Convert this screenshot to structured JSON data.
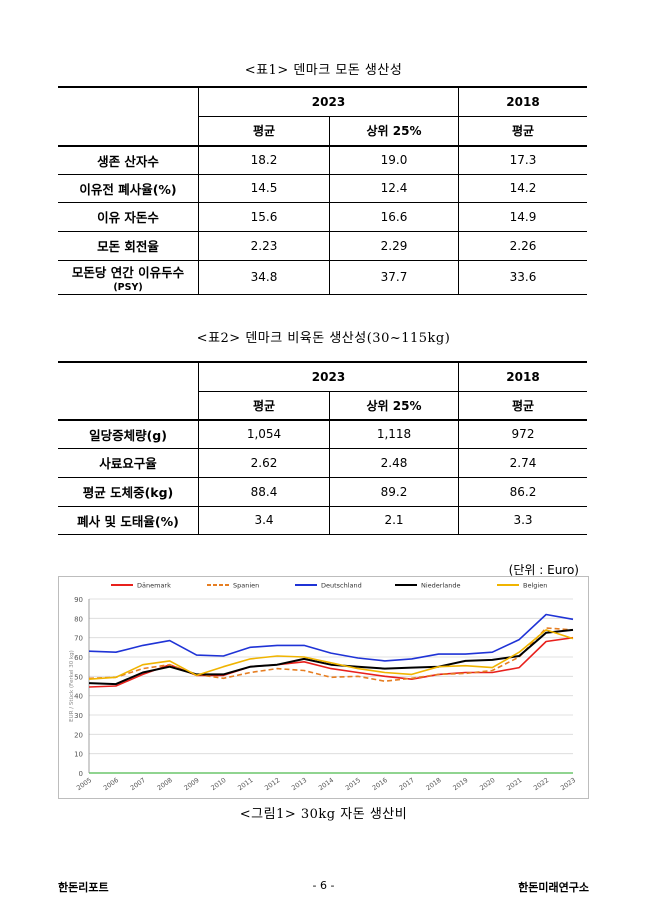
{
  "table1": {
    "caption": "<표1> 덴마크 모돈 생산성",
    "year_a": "2023",
    "year_b": "2018",
    "col_avg": "평균",
    "col_top": "상위 25%",
    "col_avg_b": "평균",
    "rows": [
      {
        "label": "생존 산자수",
        "sub": "",
        "avg": "18.2",
        "top": "19.0",
        "prev": "17.3"
      },
      {
        "label": "이유전 폐사율(%)",
        "sub": "",
        "avg": "14.5",
        "top": "12.4",
        "prev": "14.2"
      },
      {
        "label": "이유 자돈수",
        "sub": "",
        "avg": "15.6",
        "top": "16.6",
        "prev": "14.9"
      },
      {
        "label": "모돈 회전율",
        "sub": "",
        "avg": "2.23",
        "top": "2.29",
        "prev": "2.26"
      },
      {
        "label": "모돈당 연간 이유두수",
        "sub": "(PSY)",
        "avg": "34.8",
        "top": "37.7",
        "prev": "33.6"
      }
    ]
  },
  "table2": {
    "caption": "<표2> 덴마크 비육돈 생산성(30~115kg)",
    "year_a": "2023",
    "year_b": "2018",
    "col_avg": "평균",
    "col_top": "상위 25%",
    "col_avg_b": "평균",
    "rows": [
      {
        "label": "일당증체량(g)",
        "avg": "1,054",
        "top": "1,118",
        "prev": "972"
      },
      {
        "label": "사료요구율",
        "avg": "2.62",
        "top": "2.48",
        "prev": "2.74"
      },
      {
        "label": "평균 도체중(kg)",
        "avg": "88.4",
        "top": "89.2",
        "prev": "86.2"
      },
      {
        "label": "폐사 및 도태율(%)",
        "avg": "3.4",
        "top": "2.1",
        "prev": "3.3"
      }
    ]
  },
  "unit_note": "(단위 : Euro)",
  "chart_caption": "<그림1> 30kg 자돈 생산비",
  "chart_data": {
    "type": "line",
    "title": "",
    "xlabel": "",
    "ylabel": "EUR / Stück (Ferkel 30 kg)",
    "ylim": [
      0,
      90
    ],
    "yticks": [
      0,
      10,
      20,
      30,
      40,
      50,
      60,
      70,
      80,
      90
    ],
    "grid": true,
    "legend_position": "top",
    "x": [
      "2005",
      "2006",
      "2007",
      "2008",
      "2009",
      "2010",
      "2011",
      "2012",
      "2013",
      "2014",
      "2015",
      "2016",
      "2017",
      "2018",
      "2019",
      "2020",
      "2021",
      "2022",
      "2023"
    ],
    "series": [
      {
        "name": "Dänemark",
        "color": "#e8201c",
        "dash": "solid",
        "values": [
          44.5,
          45,
          51,
          56,
          50.5,
          50.5,
          55,
          56,
          57.5,
          54,
          52,
          50,
          48.5,
          51,
          52,
          52,
          54.5,
          68,
          70
        ]
      },
      {
        "name": "Spanien",
        "color": "#e67e22",
        "dash": "dashed",
        "values": [
          49,
          49.5,
          54,
          56,
          51,
          49,
          52,
          54,
          53,
          49.5,
          50,
          47.5,
          49,
          51,
          51.5,
          53,
          60,
          75,
          74
        ]
      },
      {
        "name": "Deutschland",
        "color": "#1f33d6",
        "dash": "solid",
        "values": [
          63,
          62.5,
          66,
          68.5,
          61,
          60.5,
          65,
          66,
          66,
          62,
          59.5,
          58,
          59,
          61.5,
          61.5,
          62.5,
          69,
          82,
          79.5
        ]
      },
      {
        "name": "Niederlande",
        "color": "#000000",
        "dash": "solid",
        "values": [
          46.5,
          46,
          52,
          55,
          51,
          51,
          55,
          56,
          59,
          56,
          55,
          54,
          54.5,
          55,
          58,
          58.5,
          60.5,
          72.5,
          74
        ]
      },
      {
        "name": "Belgien",
        "color": "#f0b400",
        "dash": "solid",
        "values": [
          48.5,
          49.5,
          56,
          58,
          50.5,
          55,
          59,
          60.5,
          60,
          57,
          54,
          52,
          51,
          55,
          55.5,
          54.5,
          62.5,
          74,
          69.5
        ]
      }
    ]
  },
  "footer": {
    "left": "한돈리포트",
    "center": "- 6 -",
    "right": "한돈미래연구소"
  }
}
